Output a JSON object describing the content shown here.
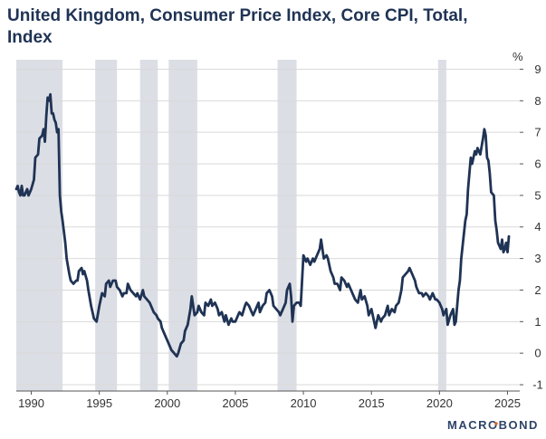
{
  "chart_data": {
    "type": "line",
    "title": "United Kingdom, Consumer Price Index, Core CPI, Total, Index",
    "xlabel": "",
    "ylabel": "",
    "unit_label": "%",
    "xlim": [
      1988.9,
      2025.9
    ],
    "ylim": [
      -1.2,
      9.3
    ],
    "y_ticks": [
      -1,
      0,
      1,
      2,
      3,
      4,
      5,
      6,
      7,
      8,
      9
    ],
    "x_ticks": [
      1990,
      1995,
      2000,
      2005,
      2010,
      2015,
      2020,
      2025
    ],
    "grid": true,
    "legend": "none",
    "recession_bands": [
      {
        "start": 1988.9,
        "end": 1992.3
      },
      {
        "start": 1994.7,
        "end": 1996.3
      },
      {
        "start": 1998.0,
        "end": 1999.3
      },
      {
        "start": 2000.1,
        "end": 2002.2
      },
      {
        "start": 2008.1,
        "end": 2009.5
      },
      {
        "start": 2019.9,
        "end": 2020.5
      }
    ],
    "series": [
      {
        "color": "#1f3354",
        "points": [
          [
            1988.9,
            5.2
          ],
          [
            1989.0,
            5.3
          ],
          [
            1989.1,
            5.1
          ],
          [
            1989.2,
            5.0
          ],
          [
            1989.3,
            5.3
          ],
          [
            1989.4,
            5.0
          ],
          [
            1989.5,
            5.0
          ],
          [
            1989.7,
            5.2
          ],
          [
            1989.8,
            5.0
          ],
          [
            1990.0,
            5.2
          ],
          [
            1990.2,
            5.5
          ],
          [
            1990.3,
            6.2
          ],
          [
            1990.5,
            6.3
          ],
          [
            1990.6,
            6.8
          ],
          [
            1990.8,
            6.9
          ],
          [
            1990.9,
            7.1
          ],
          [
            1991.0,
            6.7
          ],
          [
            1991.1,
            7.5
          ],
          [
            1991.2,
            8.1
          ],
          [
            1991.3,
            8.0
          ],
          [
            1991.4,
            8.2
          ],
          [
            1991.5,
            7.6
          ],
          [
            1991.6,
            7.6
          ],
          [
            1991.7,
            7.4
          ],
          [
            1991.8,
            7.3
          ],
          [
            1991.9,
            7.0
          ],
          [
            1992.0,
            7.1
          ],
          [
            1992.1,
            5.0
          ],
          [
            1992.2,
            4.5
          ],
          [
            1992.3,
            4.2
          ],
          [
            1992.5,
            3.5
          ],
          [
            1992.6,
            3.0
          ],
          [
            1992.8,
            2.5
          ],
          [
            1992.9,
            2.3
          ],
          [
            1993.1,
            2.2
          ],
          [
            1993.3,
            2.3
          ],
          [
            1993.4,
            2.3
          ],
          [
            1993.5,
            2.6
          ],
          [
            1993.7,
            2.7
          ],
          [
            1993.8,
            2.5
          ],
          [
            1993.9,
            2.6
          ],
          [
            1994.1,
            2.3
          ],
          [
            1994.2,
            2.0
          ],
          [
            1994.4,
            1.5
          ],
          [
            1994.5,
            1.3
          ],
          [
            1994.6,
            1.1
          ],
          [
            1994.8,
            1.0
          ],
          [
            1995.0,
            1.5
          ],
          [
            1995.2,
            1.9
          ],
          [
            1995.4,
            1.8
          ],
          [
            1995.5,
            2.2
          ],
          [
            1995.7,
            2.3
          ],
          [
            1995.8,
            2.1
          ],
          [
            1996.0,
            2.3
          ],
          [
            1996.2,
            2.3
          ],
          [
            1996.3,
            2.1
          ],
          [
            1996.5,
            2.0
          ],
          [
            1996.7,
            1.8
          ],
          [
            1996.8,
            1.9
          ],
          [
            1997.0,
            1.9
          ],
          [
            1997.1,
            2.2
          ],
          [
            1997.3,
            2.0
          ],
          [
            1997.5,
            1.9
          ],
          [
            1997.7,
            1.8
          ],
          [
            1997.8,
            1.9
          ],
          [
            1998.0,
            1.7
          ],
          [
            1998.2,
            2.0
          ],
          [
            1998.3,
            1.8
          ],
          [
            1998.5,
            1.7
          ],
          [
            1998.7,
            1.6
          ],
          [
            1998.8,
            1.5
          ],
          [
            1999.0,
            1.3
          ],
          [
            1999.2,
            1.2
          ],
          [
            1999.3,
            1.1
          ],
          [
            1999.5,
            1.0
          ],
          [
            1999.6,
            0.8
          ],
          [
            1999.8,
            0.6
          ],
          [
            2000.0,
            0.4
          ],
          [
            2000.2,
            0.2
          ],
          [
            2000.3,
            0.1
          ],
          [
            2000.5,
            0.0
          ],
          [
            2000.7,
            -0.1
          ],
          [
            2000.8,
            0.0
          ],
          [
            2001.0,
            0.3
          ],
          [
            2001.2,
            0.4
          ],
          [
            2001.3,
            0.7
          ],
          [
            2001.5,
            0.9
          ],
          [
            2001.7,
            1.4
          ],
          [
            2001.8,
            1.8
          ],
          [
            2002.0,
            1.2
          ],
          [
            2002.2,
            1.3
          ],
          [
            2002.3,
            1.5
          ],
          [
            2002.5,
            1.3
          ],
          [
            2002.7,
            1.2
          ],
          [
            2002.8,
            1.6
          ],
          [
            2003.0,
            1.5
          ],
          [
            2003.2,
            1.7
          ],
          [
            2003.3,
            1.5
          ],
          [
            2003.5,
            1.6
          ],
          [
            2003.7,
            1.4
          ],
          [
            2003.8,
            1.2
          ],
          [
            2004.0,
            1.3
          ],
          [
            2004.2,
            1.0
          ],
          [
            2004.3,
            1.2
          ],
          [
            2004.5,
            0.9
          ],
          [
            2004.7,
            1.1
          ],
          [
            2004.8,
            1.0
          ],
          [
            2005.0,
            1.0
          ],
          [
            2005.2,
            1.2
          ],
          [
            2005.3,
            1.3
          ],
          [
            2005.5,
            1.2
          ],
          [
            2005.7,
            1.5
          ],
          [
            2005.8,
            1.6
          ],
          [
            2006.0,
            1.5
          ],
          [
            2006.2,
            1.3
          ],
          [
            2006.3,
            1.2
          ],
          [
            2006.5,
            1.4
          ],
          [
            2006.7,
            1.6
          ],
          [
            2006.8,
            1.3
          ],
          [
            2007.0,
            1.5
          ],
          [
            2007.2,
            1.6
          ],
          [
            2007.3,
            1.9
          ],
          [
            2007.5,
            2.0
          ],
          [
            2007.7,
            1.8
          ],
          [
            2007.8,
            1.5
          ],
          [
            2008.0,
            1.4
          ],
          [
            2008.2,
            1.3
          ],
          [
            2008.3,
            1.2
          ],
          [
            2008.5,
            1.4
          ],
          [
            2008.7,
            1.6
          ],
          [
            2008.8,
            2.0
          ],
          [
            2009.0,
            2.2
          ],
          [
            2009.1,
            1.8
          ],
          [
            2009.2,
            1.0
          ],
          [
            2009.3,
            1.5
          ],
          [
            2009.5,
            1.6
          ],
          [
            2009.7,
            1.6
          ],
          [
            2009.8,
            1.5
          ],
          [
            2010.0,
            3.1
          ],
          [
            2010.2,
            2.9
          ],
          [
            2010.3,
            3.0
          ],
          [
            2010.5,
            2.8
          ],
          [
            2010.7,
            3.0
          ],
          [
            2010.8,
            2.9
          ],
          [
            2011.0,
            3.1
          ],
          [
            2011.2,
            3.3
          ],
          [
            2011.3,
            3.6
          ],
          [
            2011.5,
            3.0
          ],
          [
            2011.7,
            3.1
          ],
          [
            2011.8,
            3.0
          ],
          [
            2012.0,
            2.6
          ],
          [
            2012.2,
            2.4
          ],
          [
            2012.3,
            2.2
          ],
          [
            2012.5,
            2.2
          ],
          [
            2012.7,
            2.0
          ],
          [
            2012.8,
            2.4
          ],
          [
            2013.0,
            2.3
          ],
          [
            2013.2,
            2.1
          ],
          [
            2013.3,
            2.2
          ],
          [
            2013.5,
            2.0
          ],
          [
            2013.7,
            1.8
          ],
          [
            2013.8,
            1.7
          ],
          [
            2014.0,
            1.6
          ],
          [
            2014.2,
            2.0
          ],
          [
            2014.3,
            1.7
          ],
          [
            2014.5,
            1.8
          ],
          [
            2014.7,
            1.5
          ],
          [
            2014.8,
            1.2
          ],
          [
            2015.0,
            1.4
          ],
          [
            2015.2,
            1.0
          ],
          [
            2015.3,
            0.8
          ],
          [
            2015.5,
            1.2
          ],
          [
            2015.7,
            1.0
          ],
          [
            2015.8,
            1.1
          ],
          [
            2016.0,
            1.2
          ],
          [
            2016.2,
            1.5
          ],
          [
            2016.3,
            1.2
          ],
          [
            2016.5,
            1.4
          ],
          [
            2016.7,
            1.3
          ],
          [
            2016.8,
            1.5
          ],
          [
            2017.0,
            1.6
          ],
          [
            2017.2,
            2.0
          ],
          [
            2017.3,
            2.4
          ],
          [
            2017.5,
            2.5
          ],
          [
            2017.7,
            2.6
          ],
          [
            2017.8,
            2.7
          ],
          [
            2018.0,
            2.5
          ],
          [
            2018.2,
            2.3
          ],
          [
            2018.3,
            2.1
          ],
          [
            2018.5,
            1.9
          ],
          [
            2018.7,
            1.9
          ],
          [
            2018.8,
            1.8
          ],
          [
            2019.0,
            1.9
          ],
          [
            2019.2,
            1.8
          ],
          [
            2019.3,
            1.7
          ],
          [
            2019.5,
            1.9
          ],
          [
            2019.7,
            1.7
          ],
          [
            2019.8,
            1.7
          ],
          [
            2020.0,
            1.6
          ],
          [
            2020.2,
            1.4
          ],
          [
            2020.3,
            1.2
          ],
          [
            2020.5,
            1.4
          ],
          [
            2020.6,
            0.9
          ],
          [
            2020.8,
            1.2
          ],
          [
            2021.0,
            1.4
          ],
          [
            2021.1,
            0.9
          ],
          [
            2021.2,
            1.0
          ],
          [
            2021.4,
            2.0
          ],
          [
            2021.5,
            2.3
          ],
          [
            2021.6,
            3.0
          ],
          [
            2021.8,
            3.8
          ],
          [
            2021.9,
            4.2
          ],
          [
            2022.0,
            4.4
          ],
          [
            2022.1,
            5.2
          ],
          [
            2022.3,
            6.2
          ],
          [
            2022.4,
            6.0
          ],
          [
            2022.6,
            6.4
          ],
          [
            2022.7,
            6.3
          ],
          [
            2022.8,
            6.5
          ],
          [
            2023.0,
            6.3
          ],
          [
            2023.2,
            6.8
          ],
          [
            2023.3,
            7.1
          ],
          [
            2023.4,
            6.9
          ],
          [
            2023.5,
            6.2
          ],
          [
            2023.6,
            6.1
          ],
          [
            2023.7,
            5.7
          ],
          [
            2023.8,
            5.1
          ],
          [
            2024.0,
            5.0
          ],
          [
            2024.1,
            4.2
          ],
          [
            2024.2,
            3.9
          ],
          [
            2024.3,
            3.5
          ],
          [
            2024.5,
            3.3
          ],
          [
            2024.6,
            3.6
          ],
          [
            2024.7,
            3.2
          ],
          [
            2024.8,
            3.3
          ],
          [
            2024.9,
            3.5
          ],
          [
            2025.0,
            3.2
          ],
          [
            2025.1,
            3.7
          ]
        ]
      }
    ]
  },
  "brand": {
    "text": "MACROBOND",
    "color": "#2e4468"
  },
  "colors": {
    "line": "#1f3354",
    "band": "#dcdee5",
    "grid": "#d9d9d9",
    "axis": "#555555"
  }
}
